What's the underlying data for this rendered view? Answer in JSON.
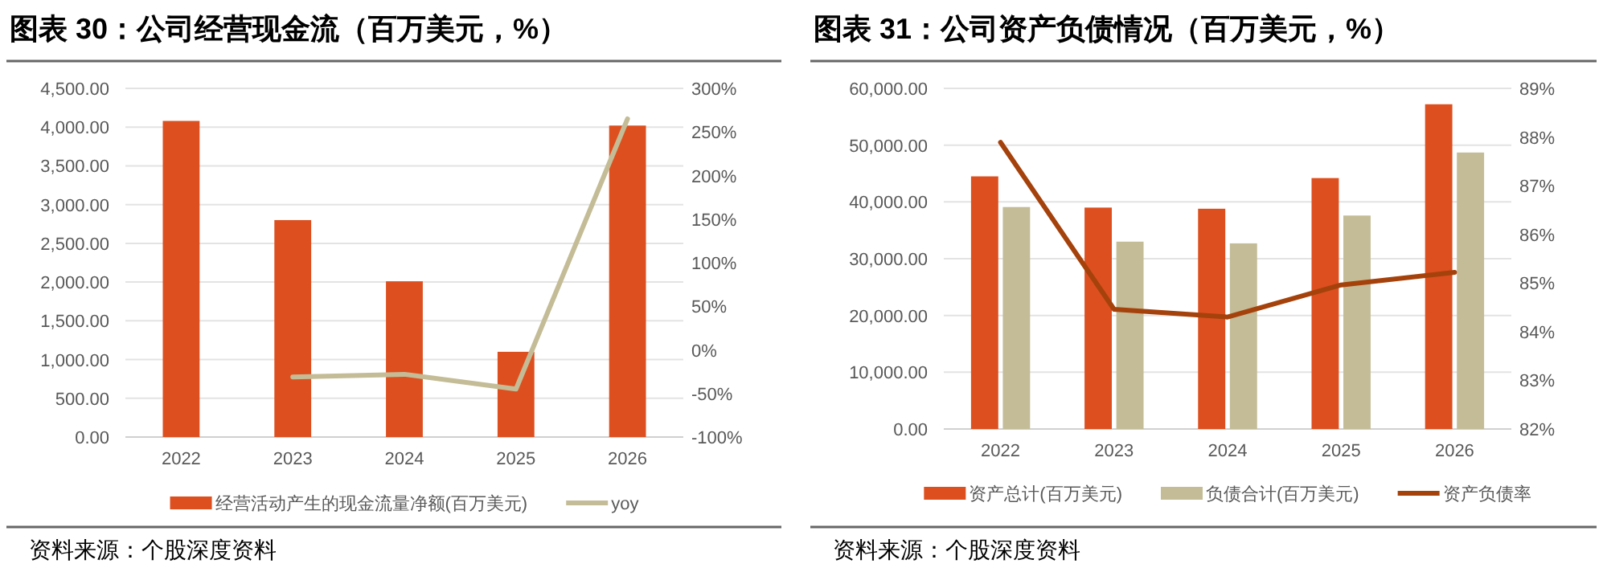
{
  "chart_data": [
    {
      "type": "bar",
      "title": "图表 30：公司经营现金流（百万美元，%）",
      "categories": [
        "2022",
        "2023",
        "2024",
        "2025",
        "2026"
      ],
      "series": [
        {
          "name": "经营活动产生的现金流量净额(百万美元)",
          "color": "#dd4f1f",
          "values": [
            4080,
            2800,
            2010,
            1100,
            4020
          ]
        },
        {
          "name": "yoy",
          "type": "line",
          "axis": "y2",
          "color": "#c4bc96",
          "values": [
            null,
            -31,
            -28,
            -45,
            265
          ]
        }
      ],
      "ylim": [
        0,
        4500
      ],
      "yticks": [
        {
          "value": 0,
          "label": "0.00"
        },
        {
          "value": 500,
          "label": "500.00"
        },
        {
          "value": 1000,
          "label": "1,000.00"
        },
        {
          "value": 1500,
          "label": "1,500.00"
        },
        {
          "value": 2000,
          "label": "2,000.00"
        },
        {
          "value": 2500,
          "label": "2,500.00"
        },
        {
          "value": 3000,
          "label": "3,000.00"
        },
        {
          "value": 3500,
          "label": "3,500.00"
        },
        {
          "value": 4000,
          "label": "4,000.00"
        },
        {
          "value": 4500,
          "label": "4,500.00"
        }
      ],
      "y2lim": [
        -100,
        300
      ],
      "y2ticks": [
        {
          "value": -100,
          "label": "-100%"
        },
        {
          "value": -50,
          "label": "-50%"
        },
        {
          "value": 0,
          "label": "0%"
        },
        {
          "value": 50,
          "label": "50%"
        },
        {
          "value": 100,
          "label": "100%"
        },
        {
          "value": 150,
          "label": "150%"
        },
        {
          "value": 200,
          "label": "200%"
        },
        {
          "value": 250,
          "label": "250%"
        },
        {
          "value": 300,
          "label": "300%"
        }
      ],
      "grid": "y",
      "legend": "bottom",
      "annotations": [
        "资料来源：个股深度资料"
      ]
    },
    {
      "type": "bar",
      "title": "图表 31：公司资产负债情况（百万美元，%）",
      "categories": [
        "2022",
        "2023",
        "2024",
        "2025",
        "2026"
      ],
      "series": [
        {
          "name": "资产总计(百万美元)",
          "color": "#dd4f1f",
          "values": [
            44500,
            39000,
            38800,
            44200,
            57200
          ]
        },
        {
          "name": "负债合计(百万美元)",
          "color": "#c4bc96",
          "values": [
            39100,
            33000,
            32700,
            37600,
            48700
          ]
        },
        {
          "name": "资产负债率",
          "type": "line",
          "axis": "y2",
          "color": "#a5420c",
          "values": [
            87.89,
            84.46,
            84.3,
            84.96,
            85.22
          ]
        }
      ],
      "ylim": [
        0,
        60000
      ],
      "yticks": [
        {
          "value": 0,
          "label": "0.00"
        },
        {
          "value": 10000,
          "label": "10,000.00"
        },
        {
          "value": 20000,
          "label": "20,000.00"
        },
        {
          "value": 30000,
          "label": "30,000.00"
        },
        {
          "value": 40000,
          "label": "40,000.00"
        },
        {
          "value": 50000,
          "label": "50,000.00"
        },
        {
          "value": 60000,
          "label": "60,000.00"
        }
      ],
      "y2lim": [
        82,
        89
      ],
      "y2ticks": [
        {
          "value": 82,
          "label": "82%"
        },
        {
          "value": 83,
          "label": "83%"
        },
        {
          "value": 84,
          "label": "84%"
        },
        {
          "value": 85,
          "label": "85%"
        },
        {
          "value": 86,
          "label": "86%"
        },
        {
          "value": 87,
          "label": "87%"
        },
        {
          "value": 88,
          "label": "88%"
        },
        {
          "value": 89,
          "label": "89%"
        }
      ],
      "grid": "y",
      "legend": "bottom",
      "annotations": [
        "资料来源：个股深度资料"
      ]
    }
  ]
}
